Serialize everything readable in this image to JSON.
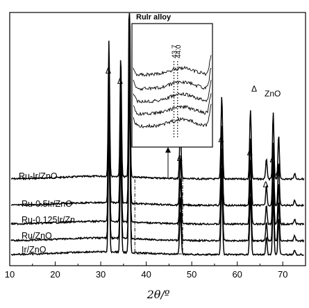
{
  "chart_data": {
    "type": "line",
    "xlabel": "2θ/º",
    "xlim": [
      10,
      75
    ],
    "xticks": [
      10,
      20,
      30,
      40,
      50,
      60,
      70
    ],
    "grid": false,
    "legend": {
      "symbol": "Δ",
      "label": "ZnO",
      "placement": "right"
    },
    "series": [
      {
        "name": "Ru-Ir/ZnO"
      },
      {
        "name": "Ru-0.5Ir/ZnO"
      },
      {
        "name": "Ru-0.125Ir/Zn"
      },
      {
        "name": "Ru/ZnO"
      },
      {
        "name": "Ir/ZnO"
      }
    ],
    "znO_peaks": [
      31.8,
      34.4,
      36.3,
      47.5,
      56.6,
      62.9,
      66.4,
      67.9,
      69.1
    ],
    "marked_peaks": [
      31.8,
      34.4,
      47.5,
      56.6,
      62.9,
      66.4,
      67.9,
      69.1
    ],
    "marker_symbol": "Δ",
    "inset": {
      "title": "Rulr alloy",
      "annotations": [
        "43.7",
        "44.0"
      ],
      "xrange": [
        37.5,
        48
      ],
      "lines": [
        43.7,
        44.0
      ]
    }
  }
}
